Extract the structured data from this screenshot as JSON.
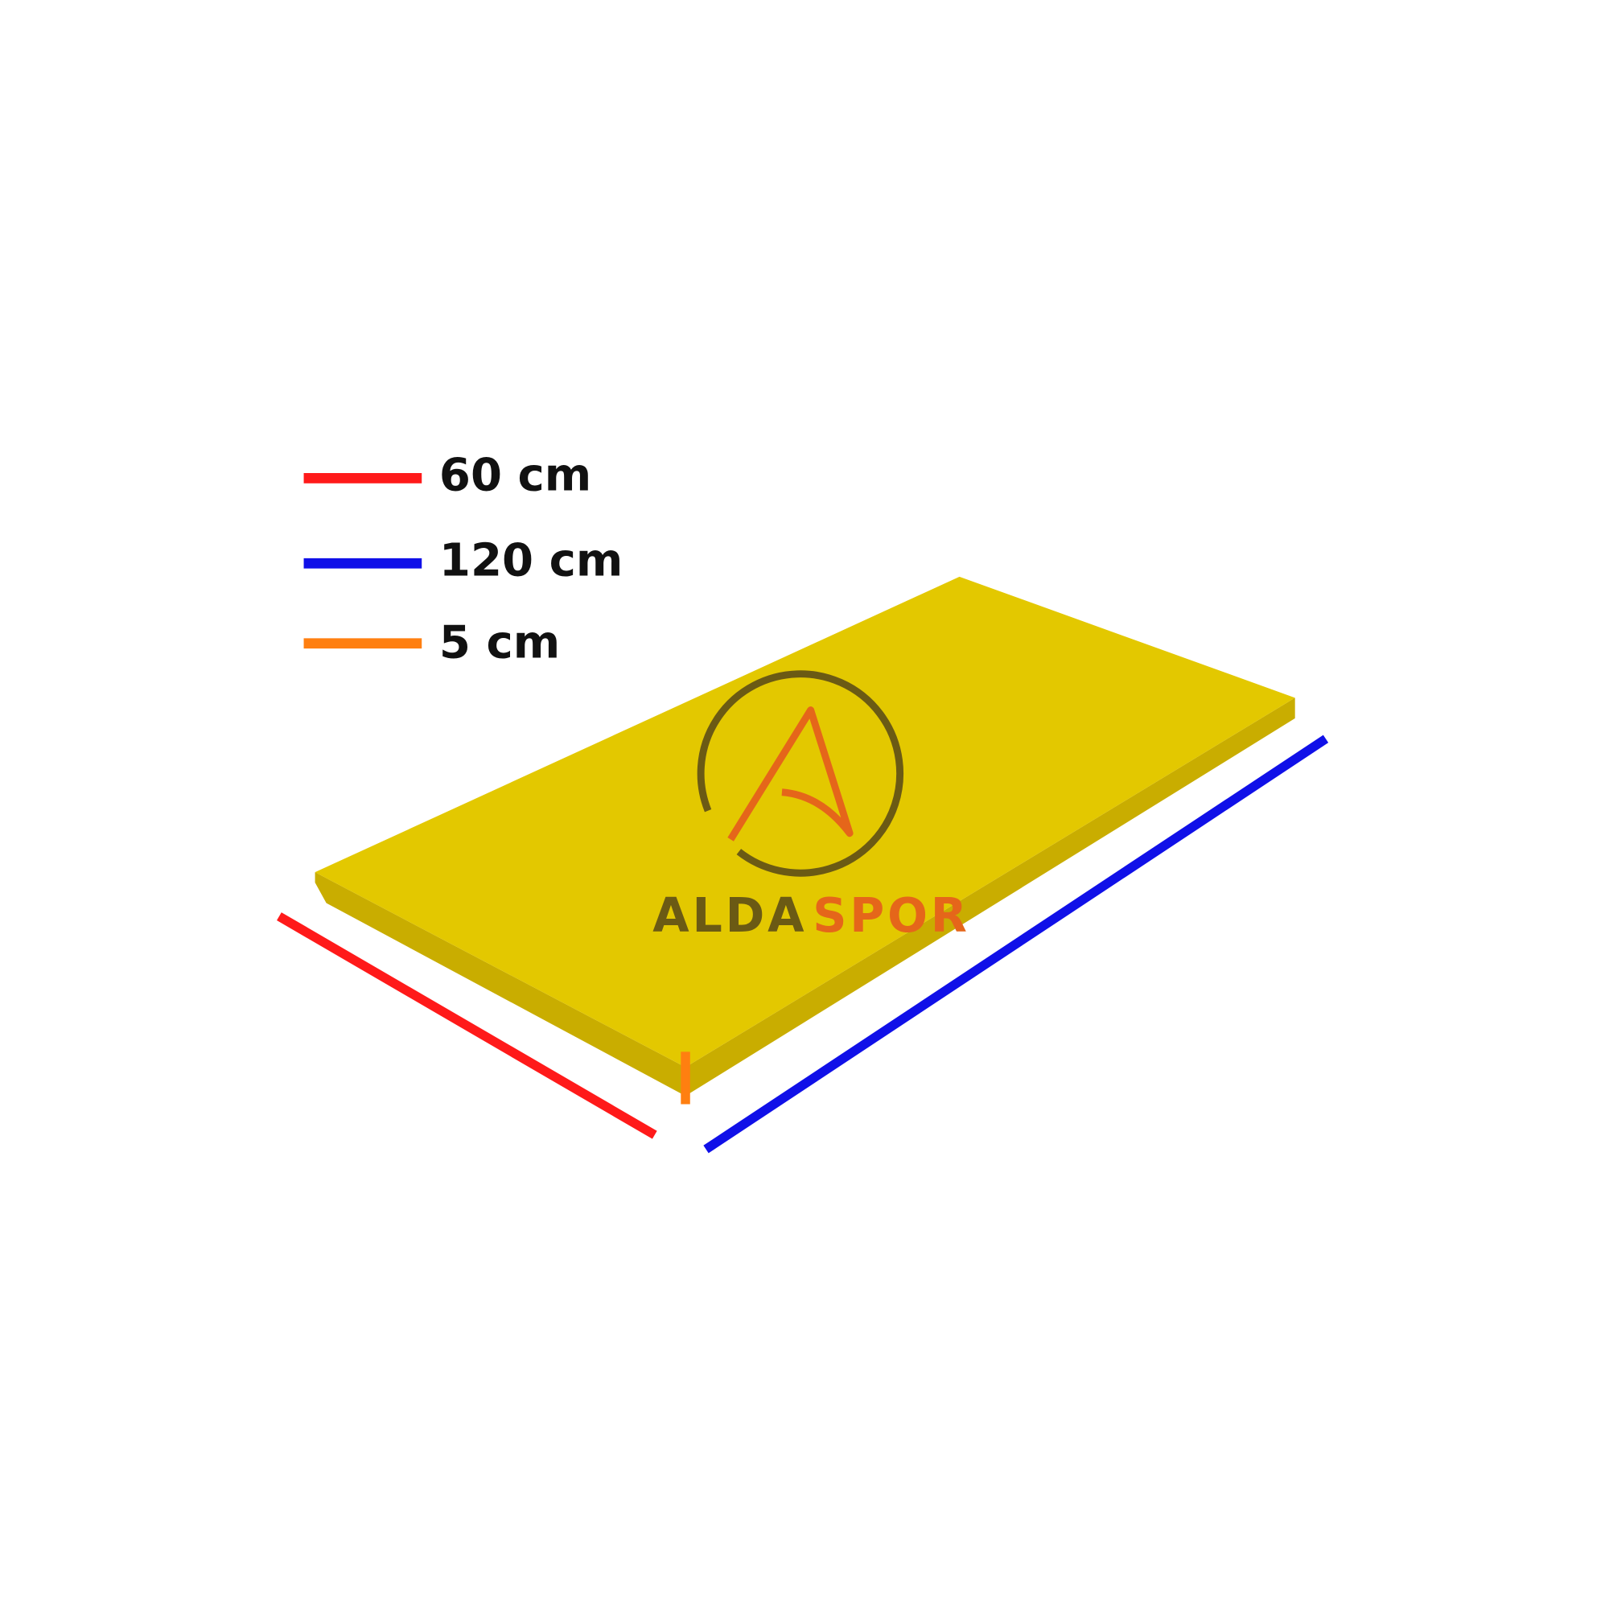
{
  "legend": [
    {
      "label": "60 cm",
      "color": "#ff1a1a"
    },
    {
      "label": "120 cm",
      "color": "#1010e8"
    },
    {
      "label": "5 cm",
      "color": "#ff7f10"
    }
  ],
  "product": {
    "color": "#e3c800",
    "shade": "#c9ad00"
  },
  "logo": {
    "word1": "ALDA",
    "word2": "SPOR",
    "dark_color": "#6b5a14",
    "accent_color": "#e5661a"
  }
}
